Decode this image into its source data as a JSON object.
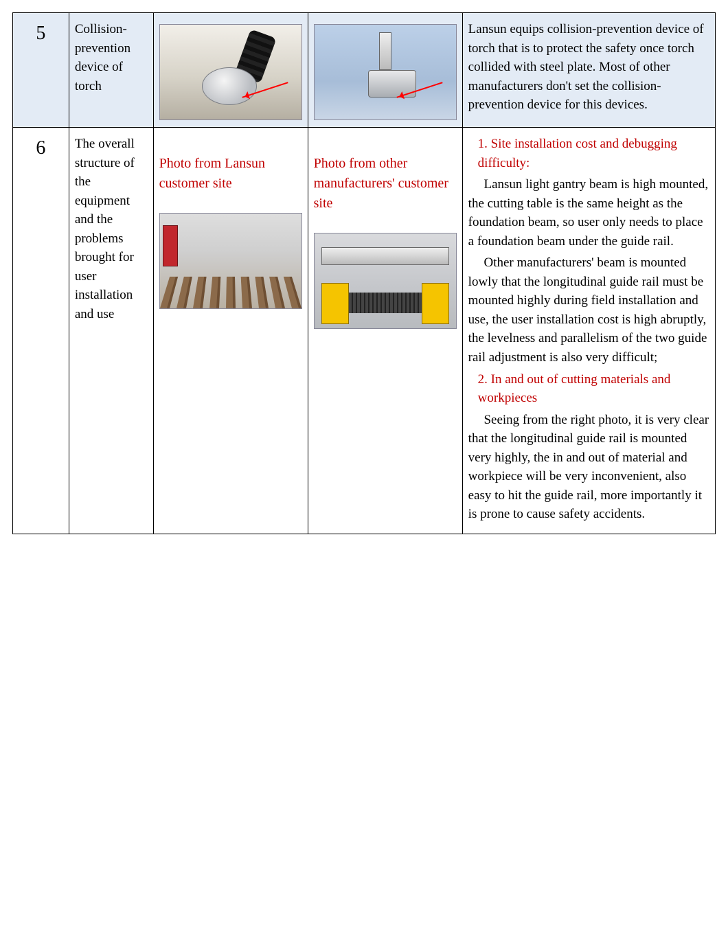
{
  "table": {
    "border_color": "#000000",
    "row5_bg": "#e3ebf5",
    "row6_bg": "#ffffff",
    "text_color": "#000000",
    "accent_red": "#c00000",
    "font_family": "Times New Roman",
    "body_fontsize_pt": 14,
    "number_fontsize_pt": 22,
    "caption_fontsize_pt": 15,
    "column_widths_pct": [
      8,
      12,
      22,
      22,
      36
    ]
  },
  "rows": [
    {
      "num": "5",
      "title": "Collision-prevention device of torch",
      "img_left_alt": "Close-up photo of Lansun torch collision-prevention device with red arrow",
      "img_right_alt": "Close-up photo of other manufacturer torch clamp with red arrow",
      "desc_plain": "Lansun equips collision-prevention device of torch that is to protect the safety once torch collided with steel plate. Most of other manufacturers don't set the collision-prevention device for this devices."
    },
    {
      "num": "6",
      "title": "The overall structure of the equipment and the problems brought for user installation and use",
      "caption_left": "Photo from Lansun customer site",
      "caption_right": "Photo from other manufacturers' customer site",
      "img_left_alt": "Photo of Lansun light gantry cutting table at customer site",
      "img_right_alt": "Photo of other manufacturer's gantry with high-mounted yellow rails",
      "desc_heading1": "1. Site installation cost and debugging difficulty:",
      "desc_para1a": "Lansun light gantry beam is high mounted, the cutting table is the same height as the foundation beam, so user only needs to place a foundation beam under the guide rail.",
      "desc_para1b": "Other manufacturers' beam is mounted lowly that the longitudinal guide rail must be mounted highly during field installation and use, the user installation cost is high abruptly, the levelness and parallelism of the two guide rail adjustment is also very difficult;",
      "desc_heading2": "2.  In and out of cutting materials and workpieces",
      "desc_para2": "Seeing from the right photo, it is very clear that the longitudinal guide rail is mounted very highly, the in and out of material and workpiece will be very inconvenient, also easy to hit the guide rail, more importantly it is prone to cause safety accidents."
    }
  ]
}
